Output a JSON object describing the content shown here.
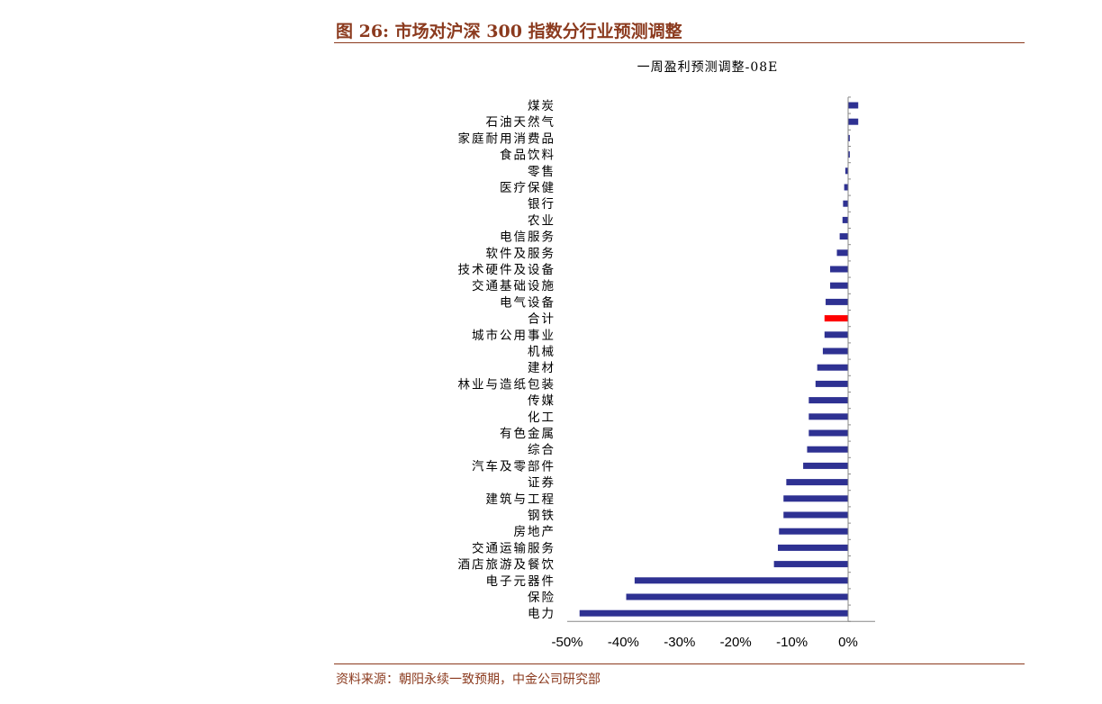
{
  "figure": {
    "title": "图 26:  市场对沪深 300 指数分行业预测调整",
    "source": "资料来源：朝阳永续一致预期，中金公司研究部"
  },
  "colors": {
    "bar": "#2E3192",
    "highlight": "#FF0000",
    "title": "#8B3A1E"
  },
  "chart_data": {
    "type": "bar",
    "orientation": "horizontal",
    "title": "一周盈利预测调整-08E",
    "xlabel": "",
    "ylabel": "",
    "xlim": [
      -50,
      0
    ],
    "highlight_category": "合计",
    "categories": [
      "煤炭",
      "石油天然气",
      "家庭耐用消费品",
      "食品饮料",
      "零售",
      "医疗保健",
      "银行",
      "农业",
      "电信服务",
      "软件及服务",
      "技术硬件及设备",
      "交通基础设施",
      "电气设备",
      "合计",
      "城市公用事业",
      "机械",
      "建材",
      "林业与造纸包装",
      "传媒",
      "化工",
      "有色金属",
      "综合",
      "汽车及零部件",
      "证券",
      "建筑与工程",
      "钢铁",
      "房地产",
      "交通运输服务",
      "酒店旅游及餐饮",
      "电子元器件",
      "保险",
      "电力"
    ],
    "values": [
      1.8,
      1.8,
      0.3,
      0.3,
      -0.5,
      -0.7,
      -0.9,
      -1.0,
      -1.5,
      -2.0,
      -3.2,
      -3.2,
      -4.0,
      -4.2,
      -4.2,
      -4.5,
      -5.5,
      -5.8,
      -7.0,
      -7.0,
      -7.0,
      -7.3,
      -8.0,
      -11.0,
      -11.5,
      -11.5,
      -12.3,
      -12.5,
      -13.2,
      -38.0,
      -39.5,
      -47.8
    ],
    "tick_values": [
      -50,
      -40,
      -30,
      -20,
      -10,
      0
    ],
    "tick_labels": [
      "-50%",
      "-40%",
      "-30%",
      "-20%",
      "-10%",
      "0%"
    ]
  }
}
